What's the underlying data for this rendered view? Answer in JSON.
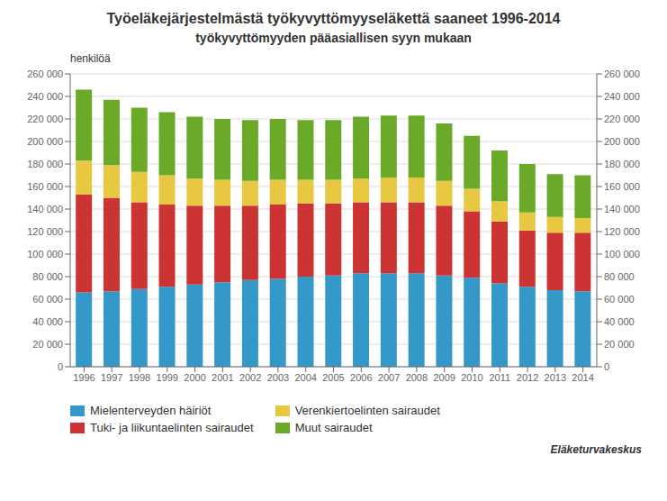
{
  "chart_data": {
    "type": "bar",
    "stacked": true,
    "title": "Työeläkejärjestelmästä työkyvyttömyyseläkettä saaneet 1996-2014",
    "subtitle": "työkyvyttömyyden pääasiallisen syyn mukaan",
    "ylabel": "henkilöä",
    "source": "Eläketurvakeskus",
    "categories": [
      "1996",
      "1997",
      "1998",
      "1999",
      "2000",
      "2001",
      "2002",
      "2003",
      "2004",
      "2005",
      "2006",
      "2007",
      "2008",
      "2009",
      "2010",
      "2011",
      "2012",
      "2013",
      "2014"
    ],
    "series": [
      {
        "name": "Mielenterveyden häiriöt",
        "color": "#3498c9",
        "values": [
          66000,
          67000,
          69000,
          71000,
          73000,
          75000,
          77000,
          78000,
          80000,
          81000,
          83000,
          83000,
          83000,
          81000,
          79000,
          74000,
          71000,
          68000,
          67000
        ]
      },
      {
        "name": "Tuki- ja liikuntaelinten sairaudet",
        "color": "#cc3333",
        "values": [
          87000,
          83000,
          77000,
          73000,
          70000,
          68000,
          66000,
          66000,
          65000,
          64000,
          63000,
          63000,
          63000,
          62000,
          59000,
          55000,
          50000,
          51000,
          52000
        ]
      },
      {
        "name": "Verenkiertoelinten sairaudet",
        "color": "#e8c840",
        "values": [
          30000,
          29000,
          27000,
          26000,
          24000,
          23000,
          22000,
          22000,
          21000,
          21000,
          21000,
          22000,
          22000,
          22000,
          20000,
          18000,
          16000,
          14000,
          13000
        ]
      },
      {
        "name": "Muut sairaudet",
        "color": "#6aaa28",
        "values": [
          63000,
          58000,
          57000,
          56000,
          55000,
          54000,
          54000,
          54000,
          53000,
          53000,
          55000,
          55000,
          55000,
          51000,
          47000,
          45000,
          43000,
          38000,
          38000
        ]
      }
    ],
    "ylim": [
      0,
      260000
    ],
    "yticks": [
      0,
      {
        "value": 20000,
        "label": "20 000"
      },
      {
        "value": 40000,
        "label": "40 000"
      },
      {
        "value": 60000,
        "label": "60 000"
      },
      {
        "value": 80000,
        "label": "80 000"
      },
      {
        "value": 100000,
        "label": "100 000"
      },
      {
        "value": 120000,
        "label": "120 000"
      },
      {
        "value": 140000,
        "label": "140 000"
      },
      {
        "value": 160000,
        "label": "160 000"
      },
      {
        "value": 180000,
        "label": "180 000"
      },
      {
        "value": 200000,
        "label": "200 000"
      },
      {
        "value": 220000,
        "label": "220 000"
      },
      {
        "value": 240000,
        "label": "240 000"
      },
      {
        "value": 260000,
        "label": "260 000"
      }
    ],
    "y2lim": [
      0,
      260000
    ],
    "y2ticks": [
      0,
      {
        "value": 20000,
        "label": "20 000"
      },
      {
        "value": 40000,
        "label": "40 000"
      },
      {
        "value": 60000,
        "label": "60 000"
      },
      {
        "value": 80000,
        "label": "80 000"
      },
      {
        "value": 100000,
        "label": "100 000"
      },
      {
        "value": 120000,
        "label": "120 000"
      },
      {
        "value": 140000,
        "label": "140 000"
      },
      {
        "value": 160000,
        "label": "160 000"
      },
      {
        "value": 180000,
        "label": "180 000"
      },
      {
        "value": 200000,
        "label": "200 000"
      },
      {
        "value": 220000,
        "label": "220 000"
      },
      {
        "value": 240000,
        "label": "240 000"
      },
      {
        "value": 260000,
        "label": "260 000"
      }
    ],
    "grid": true,
    "legend": "bottom"
  }
}
